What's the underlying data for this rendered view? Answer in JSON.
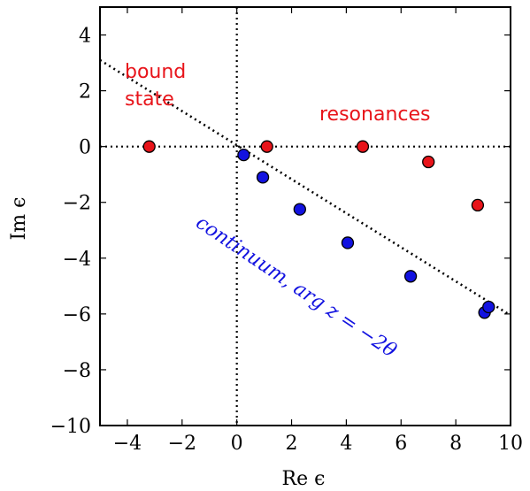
{
  "chart_data": {
    "type": "scatter",
    "xlabel": "Re ϵ",
    "ylabel": "Im ϵ",
    "xlim": [
      -5,
      10
    ],
    "ylim": [
      -10,
      5
    ],
    "xticks": [
      -4,
      -2,
      0,
      2,
      4,
      6,
      8,
      10
    ],
    "yticks": [
      4,
      2,
      0,
      -2,
      -4,
      -6,
      -8,
      -10
    ],
    "xtick_labels": [
      "−4",
      "−2",
      "0",
      "2",
      "4",
      "6",
      "8",
      "10"
    ],
    "ytick_labels": [
      "4",
      "2",
      "0",
      "−2",
      "−4",
      "−6",
      "−8",
      "−10"
    ],
    "grid": false,
    "series": [
      {
        "color": "#e8141a",
        "points": [
          {
            "x": -3.2,
            "y": 0.0
          },
          {
            "x": 1.1,
            "y": 0.0
          },
          {
            "x": 4.6,
            "y": 0.0
          },
          {
            "x": 7.0,
            "y": -0.55
          },
          {
            "x": 8.8,
            "y": -2.1
          }
        ]
      },
      {
        "color": "#1212e0",
        "points": [
          {
            "x": 0.25,
            "y": -0.3
          },
          {
            "x": 0.95,
            "y": -1.1
          },
          {
            "x": 2.3,
            "y": -2.25
          },
          {
            "x": 4.05,
            "y": -3.45
          },
          {
            "x": 6.35,
            "y": -4.65
          },
          {
            "x": 9.05,
            "y": -5.95
          },
          {
            "x": 9.2,
            "y": -5.75
          }
        ]
      }
    ],
    "reference_lines": [
      {
        "orientation": "horizontal",
        "y": 0,
        "style": "dotted"
      },
      {
        "orientation": "vertical",
        "x": 0,
        "style": "dotted"
      },
      {
        "orientation": "sloped",
        "x1": -5,
        "y1": 3.1,
        "x2": 10,
        "y2": -6.05,
        "style": "dotted"
      }
    ],
    "annotations": {
      "bound_line1": "bound",
      "bound_line2": "state",
      "resonances": "resonances",
      "continuum": "continuum, arg z = −2θ",
      "bound_color": "#e8141a",
      "resonances_color": "#e8141a",
      "continuum_color": "#1212e0"
    }
  }
}
